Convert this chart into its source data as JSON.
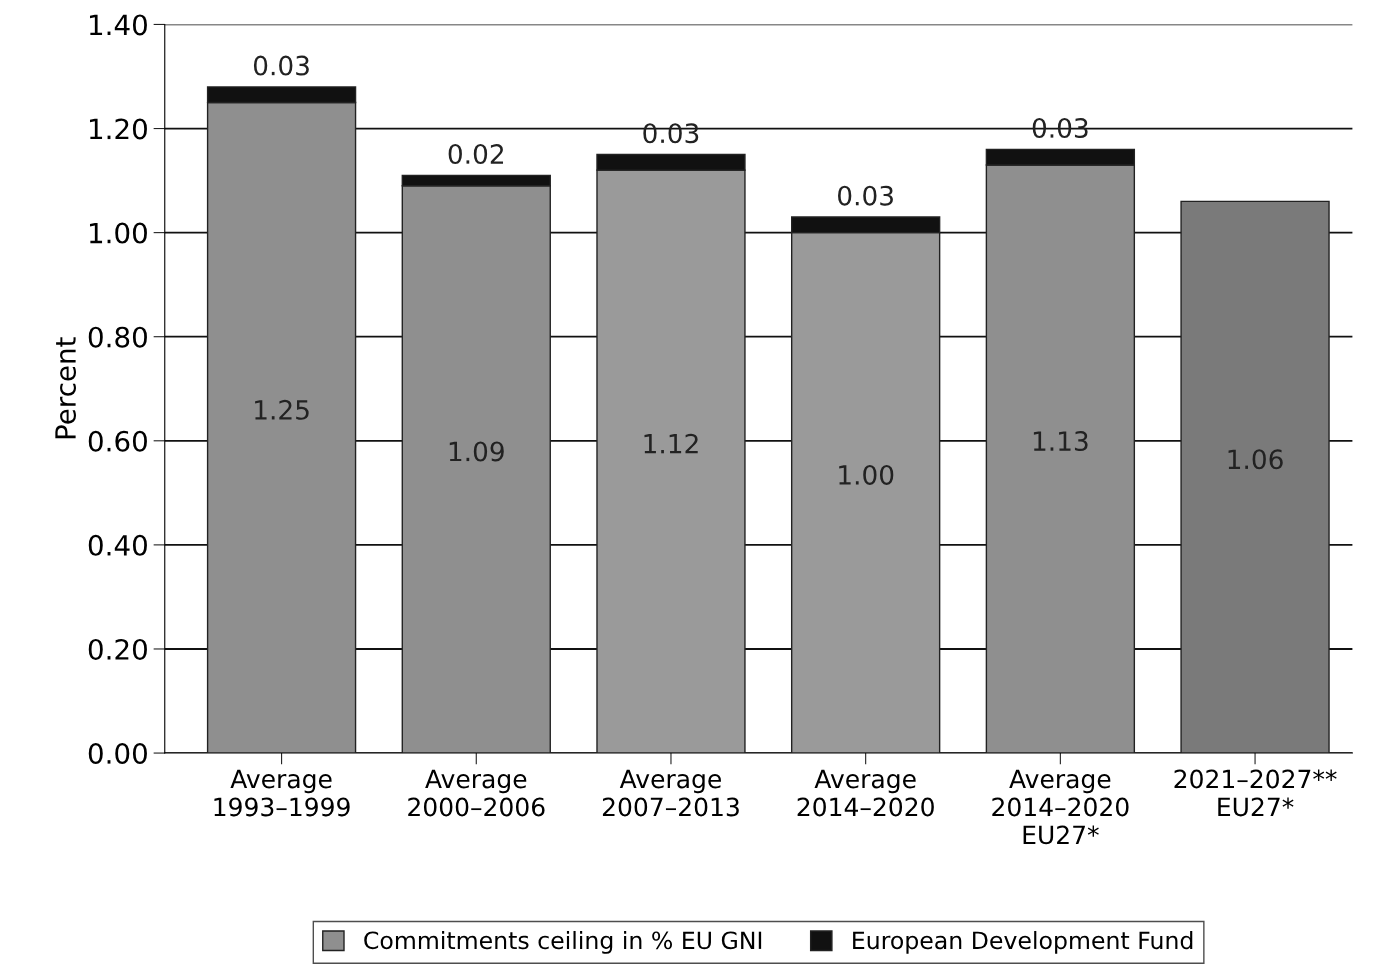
{
  "chart_data": {
    "type": "bar",
    "stacked": true,
    "ylabel": "Percent",
    "categories": [
      "Average\n1993–1999",
      "Average\n2000–2006",
      "Average\n2007–2013",
      "Average\n2014–2020",
      "Average\n2014–2020\nEU27*",
      "2021–2027**\nEU27*"
    ],
    "series": [
      {
        "name": "Commitments ceiling in % EU GNI",
        "color": "#8f8f8f",
        "colors": [
          "#8f8f8f",
          "#8f8f8f",
          "#9a9a9a",
          "#9a9a9a",
          "#8f8f8f",
          "#7a7a7a"
        ],
        "values": [
          1.25,
          1.09,
          1.12,
          1.0,
          1.13,
          1.06
        ],
        "value_labels": [
          "1.25",
          "1.09",
          "1.12",
          "1.00",
          "1.13",
          "1.06"
        ]
      },
      {
        "name": "European Development Fund",
        "color": "#111111",
        "values": [
          0.03,
          0.02,
          0.03,
          0.03,
          0.03,
          null
        ],
        "value_labels": [
          "0.03",
          "0.02",
          "0.03",
          "0.03",
          "0.03",
          null
        ]
      }
    ],
    "ylim": [
      0,
      1.4
    ],
    "yticks": [
      {
        "value": 0,
        "label": "0.00"
      },
      {
        "value": 0.2,
        "label": "0.20"
      },
      {
        "value": 0.4,
        "label": "0.40"
      },
      {
        "value": 0.6,
        "label": "0.60"
      },
      {
        "value": 0.8,
        "label": "0.80"
      },
      {
        "value": 1.0,
        "label": "1.00"
      },
      {
        "value": 1.2,
        "label": "1.20"
      },
      {
        "value": 1.4,
        "label": "1.40"
      }
    ],
    "grid": "y",
    "legend": "bottom"
  }
}
